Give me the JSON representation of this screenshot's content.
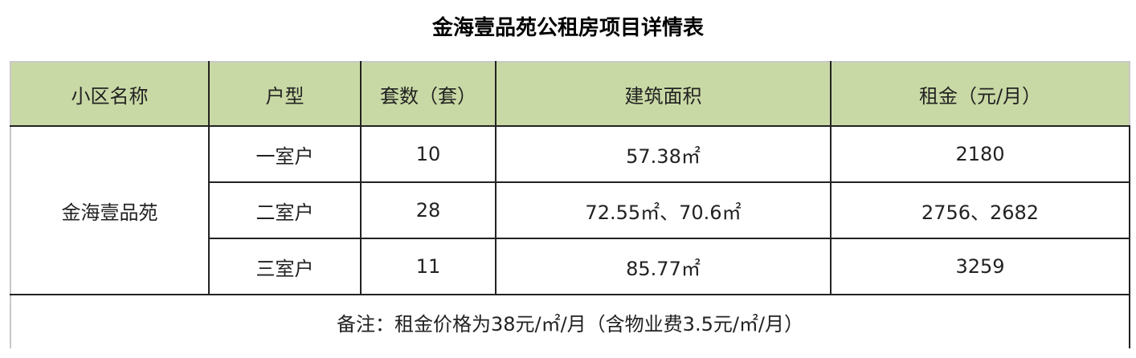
{
  "title": "金海壹品苑公租房项目详情表",
  "table": {
    "headers": [
      "小区名称",
      "户型",
      "套数（套）",
      "建筑面积",
      "租金（元/月）"
    ],
    "community": "金海壹品苑",
    "rows": [
      {
        "type": "一室户",
        "count": "10",
        "area": "57.38㎡",
        "rent": "2180"
      },
      {
        "type": "二室户",
        "count": "28",
        "area": "72.55㎡、70.6㎡",
        "rent": "2756、2682"
      },
      {
        "type": "三室户",
        "count": "11",
        "area": "85.77㎡",
        "rent": "3259"
      }
    ],
    "note": "备注：租金价格为38元/㎡/月（含物业费3.5元/㎡/月）"
  },
  "colors": {
    "header_bg": "#c9d9a5"
  }
}
